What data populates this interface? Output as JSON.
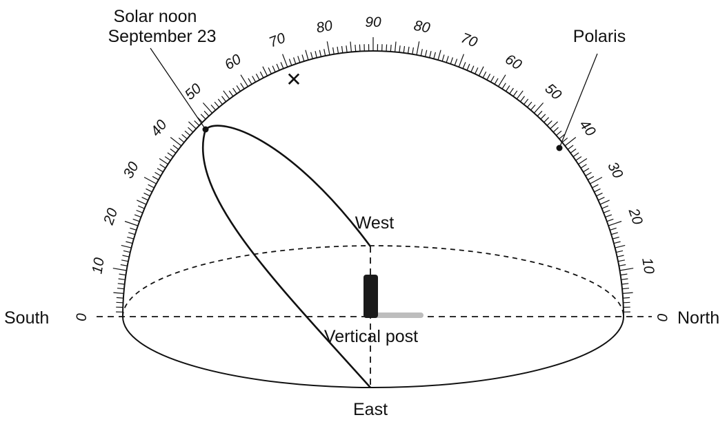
{
  "labels": {
    "south": "South",
    "north": "North",
    "east": "East",
    "west": "West",
    "polaris": "Polaris",
    "solar_noon_line1": "Solar noon",
    "solar_noon_line2": "September 23",
    "vertical_post": "Vertical post"
  },
  "scale_numbers": {
    "south_side": [
      "0",
      "10",
      "20",
      "30",
      "40",
      "50",
      "60",
      "70",
      "80"
    ],
    "zenith": "90",
    "north_side": [
      "80",
      "70",
      "60",
      "50",
      "40",
      "30",
      "20",
      "10",
      "0"
    ]
  },
  "markers": {
    "solar_noon_altitude_deg": 47,
    "polaris_altitude_deg": 43,
    "x_mark_altitude_deg": 74,
    "x_mark_symbol": "✕"
  },
  "colors": {
    "ink": "#111111",
    "post": "#1a1a1a",
    "shadow": "#bdbdbd",
    "background": "#ffffff"
  }
}
